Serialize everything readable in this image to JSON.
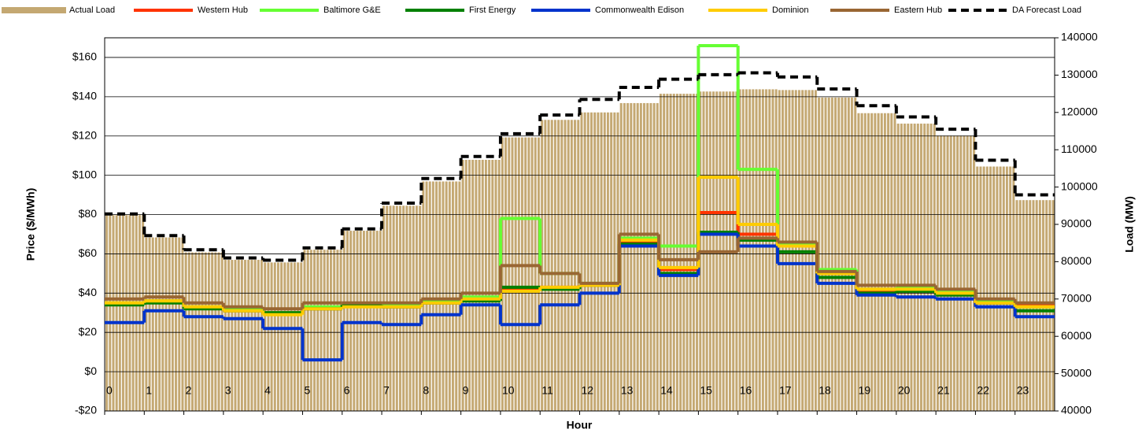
{
  "chart_data": {
    "type": "combo",
    "x_label": "Hour",
    "y_label": "Price ($/MWh)",
    "y2_label": "Load (MW)",
    "x": [
      0,
      1,
      2,
      3,
      4,
      5,
      6,
      7,
      8,
      9,
      10,
      11,
      12,
      13,
      14,
      15,
      16,
      17,
      18,
      19,
      20,
      21,
      22,
      23
    ],
    "xlim": [
      0,
      24
    ],
    "xticks": [
      0,
      1,
      2,
      3,
      4,
      5,
      6,
      7,
      8,
      9,
      10,
      11,
      12,
      13,
      14,
      15,
      16,
      17,
      18,
      19,
      20,
      21,
      22,
      23
    ],
    "ylim": [
      -20,
      170
    ],
    "yticks": [
      {
        "value": -20,
        "label": "-$20"
      },
      {
        "value": 0,
        "label": "$0"
      },
      {
        "value": 20,
        "label": "$20"
      },
      {
        "value": 40,
        "label": "$40"
      },
      {
        "value": 60,
        "label": "$60"
      },
      {
        "value": 80,
        "label": "$80"
      },
      {
        "value": 100,
        "label": "$100"
      },
      {
        "value": 120,
        "label": "$120"
      },
      {
        "value": 140,
        "label": "$140"
      },
      {
        "value": 160,
        "label": "$160"
      }
    ],
    "y2lim": [
      40000,
      140000
    ],
    "y2ticks": [
      40000,
      50000,
      60000,
      70000,
      80000,
      90000,
      100000,
      110000,
      120000,
      130000,
      140000
    ],
    "grid": true,
    "legend": "top",
    "series": [
      {
        "name": "Actual Load",
        "kind": "bar",
        "axis": "y2",
        "color": "#c4a872",
        "values": [
          92500,
          86500,
          82500,
          80500,
          79800,
          83200,
          88300,
          95000,
          101500,
          107300,
          113300,
          118000,
          120000,
          122500,
          125000,
          125600,
          126200,
          126000,
          124000,
          119800,
          117000,
          113800,
          105500,
          96500
        ]
      },
      {
        "name": "Western Hub",
        "kind": "line",
        "color": "#ff3300",
        "values": [
          35,
          36,
          33,
          31,
          30,
          32,
          34,
          33,
          35,
          37,
          42,
          43,
          44,
          66,
          52,
          81,
          70,
          64,
          50,
          41,
          42,
          40,
          35,
          34
        ]
      },
      {
        "name": "Baltimore G&E",
        "kind": "line",
        "color": "#66ff33",
        "values": [
          35,
          36,
          33,
          32,
          30,
          33,
          34,
          34,
          36,
          38,
          78,
          50,
          45,
          68,
          64,
          166,
          103,
          65,
          52,
          42,
          43,
          41,
          36,
          33
        ]
      },
      {
        "name": "First Energy",
        "kind": "line",
        "color": "#008000",
        "values": [
          34,
          35,
          32,
          31,
          30,
          32,
          34,
          33,
          35,
          36,
          43,
          42,
          44,
          65,
          50,
          71,
          67,
          61,
          48,
          40,
          41,
          39,
          35,
          31
        ]
      },
      {
        "name": "Commonwealth Edison",
        "kind": "line",
        "color": "#0033cc",
        "values": [
          25,
          31,
          28,
          27,
          22,
          6,
          25,
          24,
          29,
          34,
          24,
          34,
          40,
          64,
          49,
          70,
          64,
          55,
          45,
          39,
          38,
          37,
          33,
          28
        ]
      },
      {
        "name": "Dominion",
        "kind": "line",
        "color": "#ffcc00",
        "values": [
          35,
          36,
          33,
          31,
          29,
          32,
          33,
          33,
          35,
          37,
          41,
          43,
          44,
          67,
          53,
          99,
          75,
          64,
          50,
          42,
          42,
          40,
          35,
          33
        ]
      },
      {
        "name": "Eastern Hub",
        "kind": "line",
        "color": "#996633",
        "values": [
          37,
          38,
          35,
          33,
          32,
          35,
          35,
          35,
          37,
          40,
          54,
          50,
          45,
          70,
          57,
          61,
          68,
          66,
          51,
          44,
          44,
          42,
          37,
          35
        ]
      },
      {
        "name": "DA Forecast Load",
        "kind": "dash",
        "axis": "y2",
        "color": "#000000",
        "values": [
          92800,
          87000,
          83200,
          81000,
          80400,
          83700,
          88800,
          95700,
          102300,
          108200,
          114300,
          119300,
          123500,
          126700,
          128900,
          130100,
          130600,
          129500,
          126300,
          121800,
          118800,
          115500,
          107200,
          97900
        ]
      }
    ]
  }
}
